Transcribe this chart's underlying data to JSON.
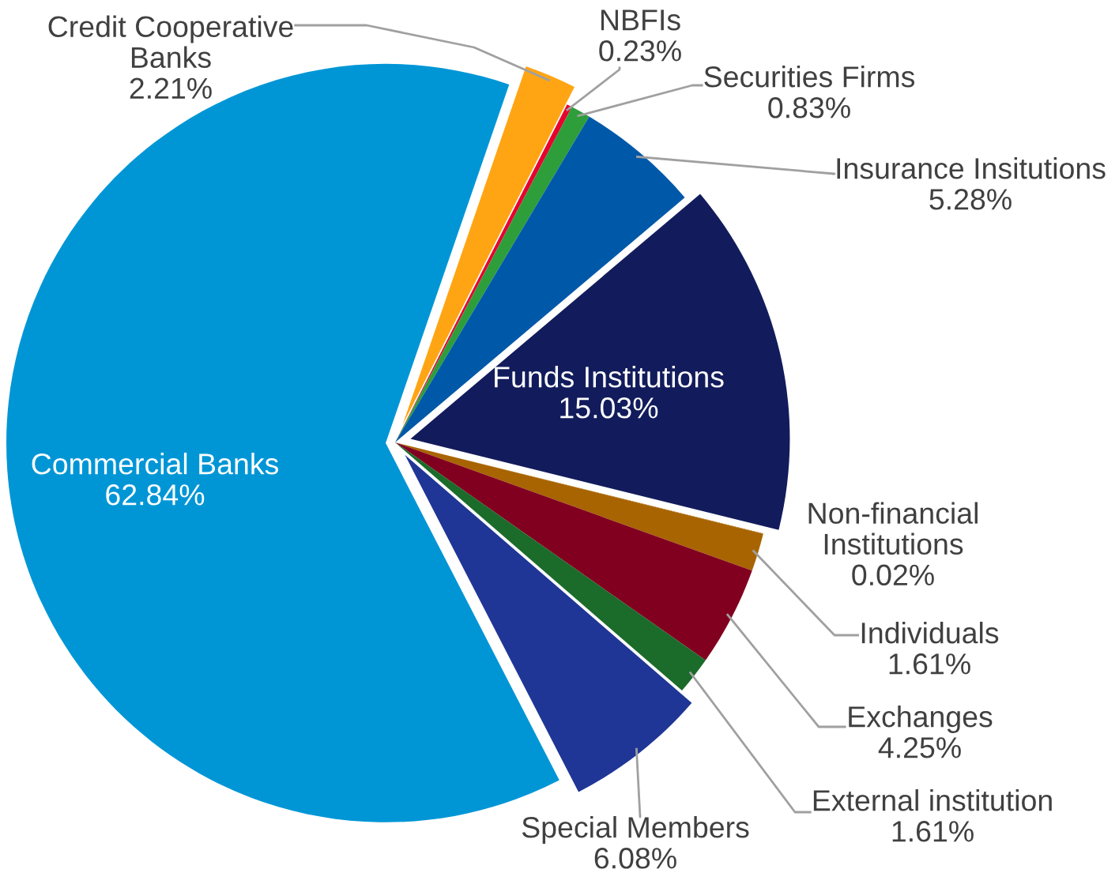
{
  "chart_data": {
    "type": "pie",
    "categories": [
      "Credit Cooperative\nBanks",
      "NBFIs",
      "Securities Firms",
      "Insurance Insitutions",
      "Funds Institutions",
      "Non-financial\nInstitutions",
      "Individuals",
      "Exchanges",
      "External institution",
      "Special Members",
      "Commercial Banks"
    ],
    "values": [
      2.21,
      0.23,
      0.83,
      5.28,
      15.03,
      0.02,
      1.61,
      4.25,
      1.61,
      6.08,
      62.84
    ],
    "value_labels": [
      "2.21%",
      "0.23%",
      "0.83%",
      "5.28%",
      "15.03%",
      "0.02%",
      "1.61%",
      "4.25%",
      "1.61%",
      "6.08%",
      "62.84%"
    ],
    "colors": [
      "#ffa514",
      "#e8002e",
      "#2e9e3a",
      "#0058a8",
      "#121c5c",
      "#a86400",
      "#a86400",
      "#82001f",
      "#1b6b2a",
      "#1f3696",
      "#0096d6"
    ],
    "legend": false
  }
}
